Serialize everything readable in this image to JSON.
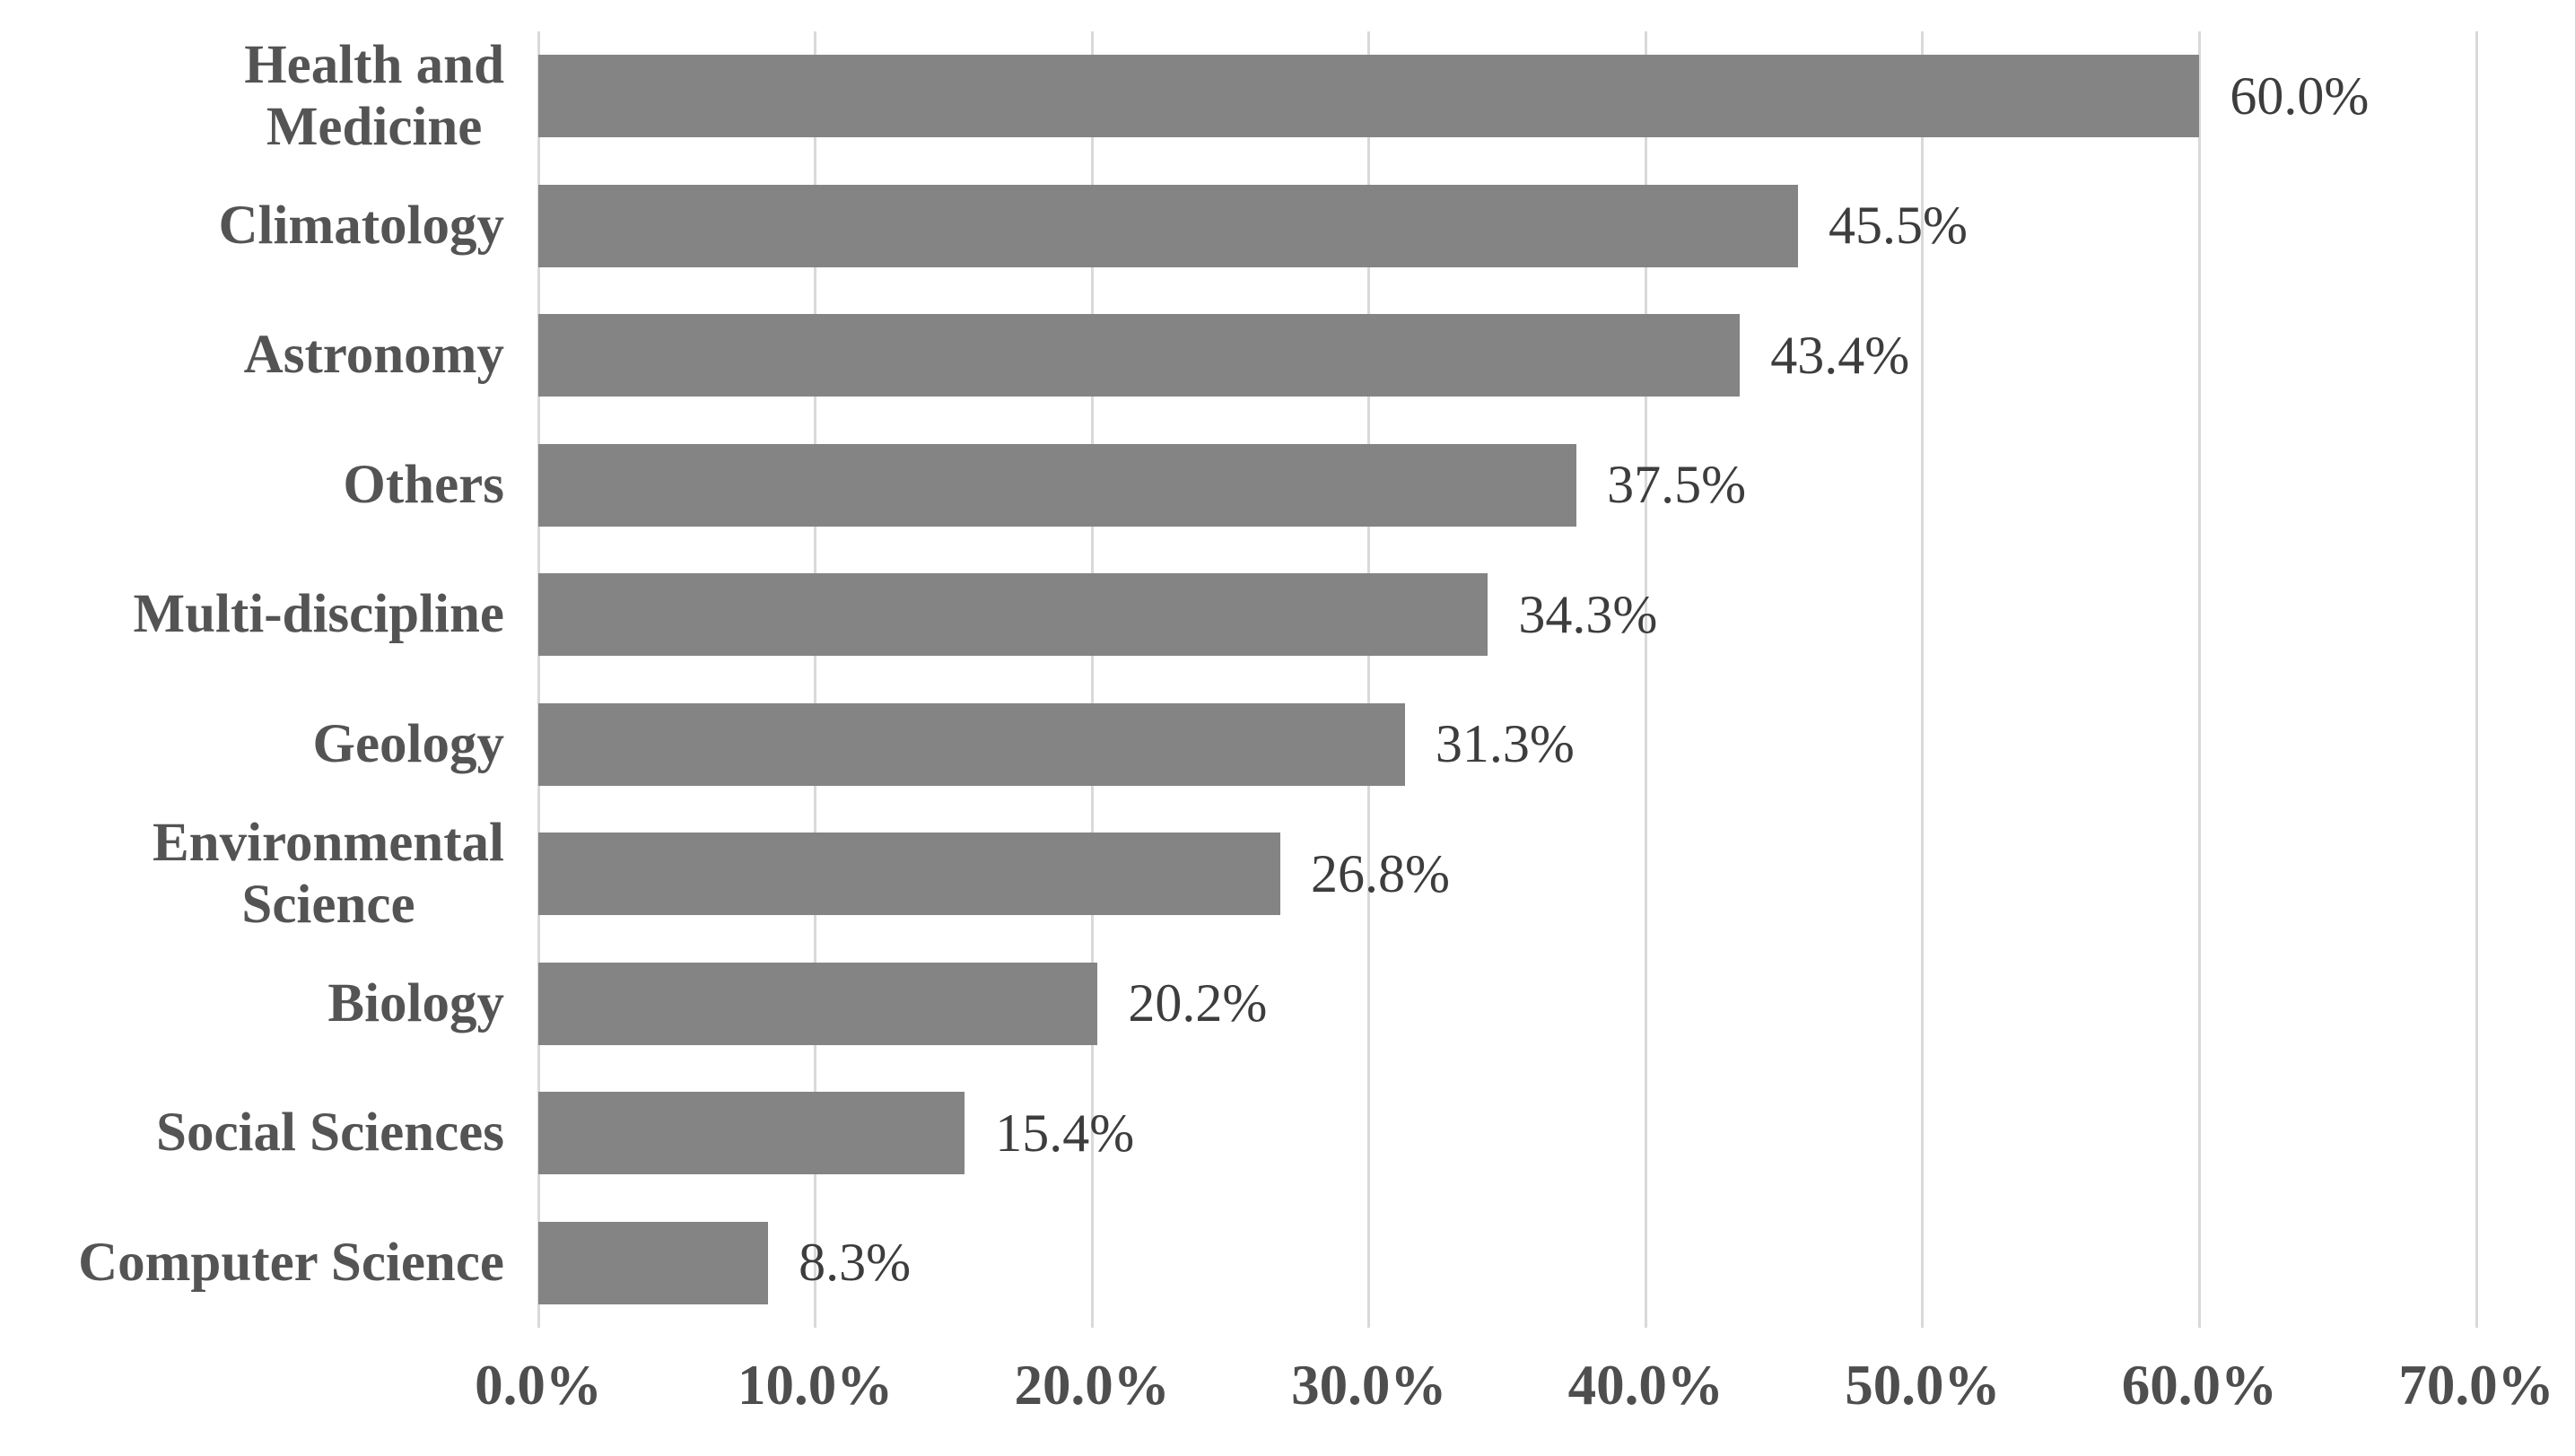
{
  "chart_data": {
    "type": "bar",
    "orientation": "horizontal",
    "title": "",
    "xlabel": "",
    "ylabel": "",
    "categories": [
      "Health and Medicine",
      "Climatology",
      "Astronomy",
      "Others",
      "Multi-discipline",
      "Geology",
      "Environmental Science",
      "Biology",
      "Social Sciences",
      "Computer Science"
    ],
    "category_display_labels": [
      "Health and\nMedicine",
      "Climatology",
      "Astronomy",
      "Others",
      "Multi-discipline",
      "Geology",
      "Environmental\nScience",
      "Biology",
      "Social Sciences",
      "Computer Science"
    ],
    "values": [
      60.0,
      45.5,
      43.4,
      37.5,
      34.3,
      31.3,
      26.8,
      20.2,
      15.4,
      8.3
    ],
    "value_labels": [
      "60.0%",
      "45.5%",
      "43.4%",
      "37.5%",
      "34.3%",
      "31.3%",
      "26.8%",
      "20.2%",
      "15.4%",
      "8.3%"
    ],
    "x_axis": {
      "min": 0,
      "max": 70,
      "tick_values": [
        0,
        10,
        20,
        30,
        40,
        50,
        60,
        70
      ],
      "tick_labels": [
        "0.0%",
        "10.0%",
        "20.0%",
        "30.0%",
        "40.0%",
        "50.0%",
        "60.0%",
        "70.0%"
      ]
    },
    "grid": "vertical-only",
    "legend": "none",
    "colors": {
      "bar_fill": "#848484",
      "gridline": "#d9d9d9",
      "category_label_text": "#545454",
      "value_label_text": "#3d3d3d",
      "axis_tick_text": "#4e4e4e",
      "background": "#ffffff"
    }
  }
}
